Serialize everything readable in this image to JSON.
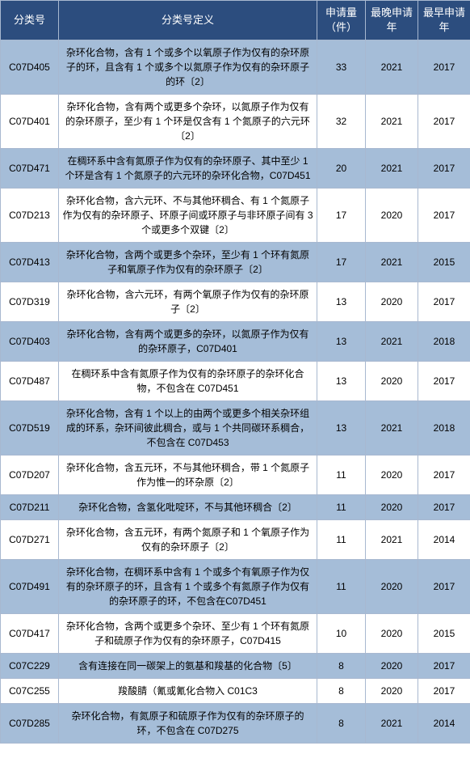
{
  "header": {
    "code": "分类号",
    "def": "分类号定义",
    "count": "申请量（件）",
    "late": "最晚申请年",
    "early": "最早申请年"
  },
  "colors": {
    "header_bg": "#2c4d7e",
    "header_text": "#ffffff",
    "odd_bg": "#a5bdd8",
    "even_bg": "#ffffff",
    "border": "#a8b8d0"
  },
  "rows": [
    {
      "code": "C07D405",
      "def": "杂环化合物，含有 1 个或多个以氧原子作为仅有的杂环原子的环，且含有 1 个或多个以氮原子作为仅有的杂环原子的环〔2〕",
      "count": "33",
      "late": "2021",
      "early": "2017"
    },
    {
      "code": "C07D401",
      "def": "杂环化合物，含有两个或更多个杂环，以氮原子作为仅有的杂环原子，至少有 1 个环是仅含有 1 个氮原子的六元环〔2〕",
      "count": "32",
      "late": "2021",
      "early": "2017"
    },
    {
      "code": "C07D471",
      "def": "在稠环系中含有氮原子作为仅有的杂环原子、其中至少 1 个环是含有 1 个氮原子的六元环的杂环化合物，C07D451",
      "count": "20",
      "late": "2021",
      "early": "2017"
    },
    {
      "code": "C07D213",
      "def": "杂环化合物，含六元环、不与其他环稠合、有 1 个氮原子作为仅有的杂环原子、环原子间或环原子与非环原子间有 3 个或更多个双键〔2〕",
      "count": "17",
      "late": "2020",
      "early": "2017"
    },
    {
      "code": "C07D413",
      "def": "杂环化合物，含两个或更多个杂环，至少有 1 个环有氮原子和氧原子作为仅有的杂环原子〔2〕",
      "count": "17",
      "late": "2021",
      "early": "2015"
    },
    {
      "code": "C07D319",
      "def": "杂环化合物，含六元环，有两个氧原子作为仅有的杂环原子〔2〕",
      "count": "13",
      "late": "2020",
      "early": "2017"
    },
    {
      "code": "C07D403",
      "def": "杂环化合物，含有两个或更多的杂环，以氮原子作为仅有的杂环原子，C07D401",
      "count": "13",
      "late": "2021",
      "early": "2018"
    },
    {
      "code": "C07D487",
      "def": "在稠环系中含有氮原子作为仅有的杂环原子的杂环化合物，不包含在 C07D451",
      "count": "13",
      "late": "2020",
      "early": "2017"
    },
    {
      "code": "C07D519",
      "def": "杂环化合物，含有 1 个以上的由两个或更多个相关杂环组成的环系，杂环间彼此稠合，或与 1 个共同碳环系稠合，不包含在 C07D453",
      "count": "13",
      "late": "2021",
      "early": "2018"
    },
    {
      "code": "C07D207",
      "def": "杂环化合物，含五元环，不与其他环稠合，带 1 个氮原子作为惟一的环杂原〔2〕",
      "count": "11",
      "late": "2020",
      "early": "2017"
    },
    {
      "code": "C07D211",
      "def": "杂环化合物，含氢化吡啶环，不与其他环稠合〔2〕",
      "count": "11",
      "late": "2020",
      "early": "2017"
    },
    {
      "code": "C07D271",
      "def": "杂环化合物，含五元环，有两个氮原子和 1 个氧原子作为仅有的杂环原子〔2〕",
      "count": "11",
      "late": "2021",
      "early": "2014"
    },
    {
      "code": "C07D491",
      "def": "杂环化合物，在稠环系中含有 1 个或多个有氧原子作为仅有的杂环原子的环，且含有 1 个或多个有氮原子作为仅有的杂环原子的环，不包含在C07D451",
      "count": "11",
      "late": "2020",
      "early": "2017"
    },
    {
      "code": "C07D417",
      "def": "杂环化合物，含两个或更多个杂环、至少有 1 个环有氮原子和硫原子作为仅有的杂环原子，C07D415",
      "count": "10",
      "late": "2020",
      "early": "2015"
    },
    {
      "code": "C07C229",
      "def": "含有连接在同一碳架上的氨基和羧基的化合物〔5〕",
      "count": "8",
      "late": "2020",
      "early": "2017"
    },
    {
      "code": "C07C255",
      "def": "羧酸腈（氰或氰化合物入 C01C3",
      "count": "8",
      "late": "2020",
      "early": "2017"
    },
    {
      "code": "C07D285",
      "def": "杂环化合物，有氮原子和硫原子作为仅有的杂环原子的环，不包含在 C07D275",
      "count": "8",
      "late": "2021",
      "early": "2014"
    }
  ]
}
